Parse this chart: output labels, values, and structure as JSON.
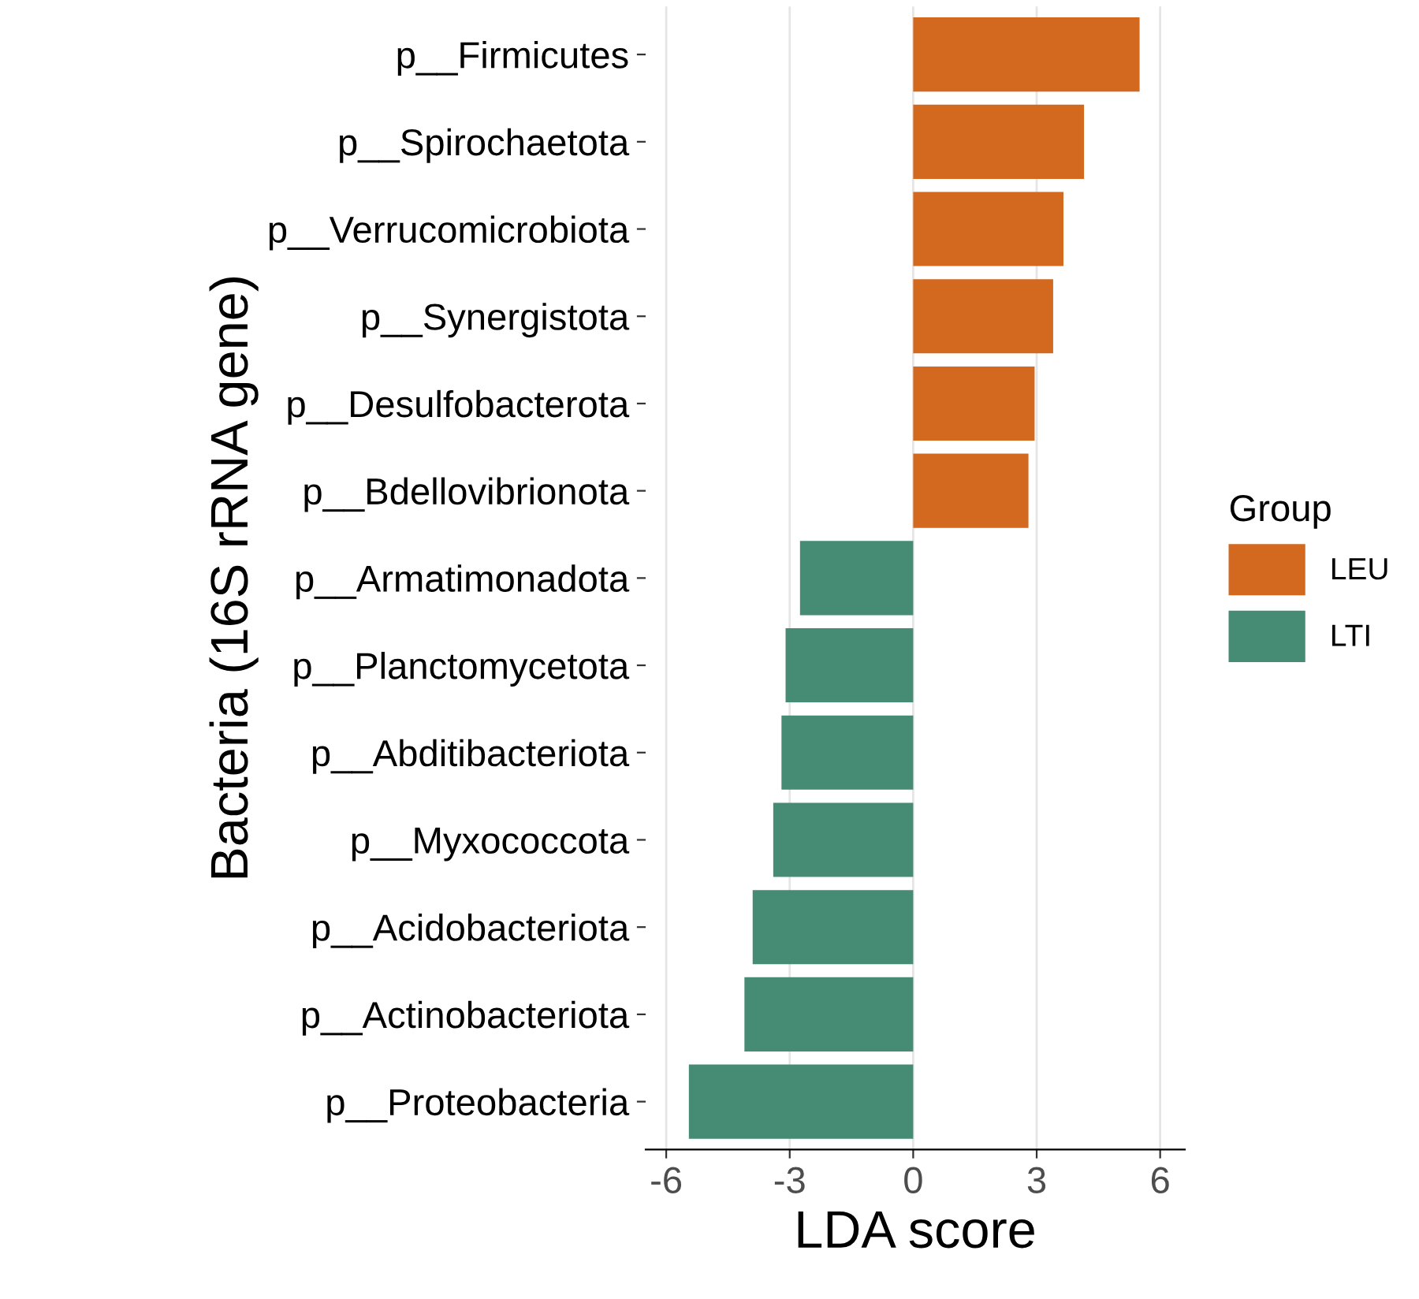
{
  "chart_data": {
    "type": "bar",
    "orientation": "horizontal",
    "xlabel": "LDA score",
    "ylabel": "Bacteria (16S rRNA gene)",
    "legend_title": "Group",
    "legend": "right",
    "grid": "x",
    "categories": [
      "p__Firmicutes",
      "p__Spirochaetota",
      "p__Verrucomicrobiota",
      "p__Synergistota",
      "p__Desulfobacterota",
      "p__Bdellovibrionota",
      "p__Armatimonadota",
      "p__Planctomycetota",
      "p__Abditibacteriota",
      "p__Myxococcota",
      "p__Acidobacteriota",
      "p__Actinobacteriota",
      "p__Proteobacteria"
    ],
    "series": [
      {
        "name": "LEU",
        "color": "#d2691e",
        "values": [
          5.5,
          4.15,
          3.65,
          3.4,
          2.95,
          2.8,
          null,
          null,
          null,
          null,
          null,
          null,
          null
        ]
      },
      {
        "name": "LTI",
        "color": "#468b73",
        "values": [
          null,
          null,
          null,
          null,
          null,
          null,
          -2.75,
          -3.1,
          -3.2,
          -3.4,
          -3.9,
          -4.1,
          -5.45
        ]
      }
    ],
    "xlim": [
      -6.5,
      6.6
    ],
    "xticks": [
      -6,
      -3,
      0,
      3,
      6
    ]
  }
}
